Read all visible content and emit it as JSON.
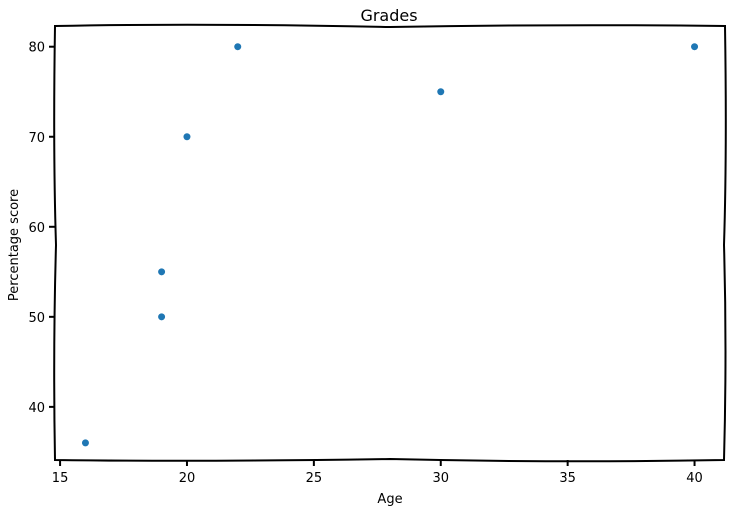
{
  "chart_data": {
    "type": "scatter",
    "title": "Grades",
    "xlabel": "Age",
    "ylabel": "Percentage score",
    "xlim": [
      14.8,
      41.2
    ],
    "ylim": [
      34.1,
      82.3
    ],
    "x_ticks": [
      15,
      20,
      25,
      30,
      35,
      40
    ],
    "y_ticks": [
      40,
      50,
      60,
      70,
      80
    ],
    "grid": false,
    "marker_color": "#1f77b4",
    "points": [
      {
        "x": 16,
        "y": 36
      },
      {
        "x": 19,
        "y": 50
      },
      {
        "x": 19,
        "y": 55
      },
      {
        "x": 20,
        "y": 70
      },
      {
        "x": 22,
        "y": 80
      },
      {
        "x": 30,
        "y": 75
      },
      {
        "x": 40,
        "y": 80
      }
    ]
  }
}
